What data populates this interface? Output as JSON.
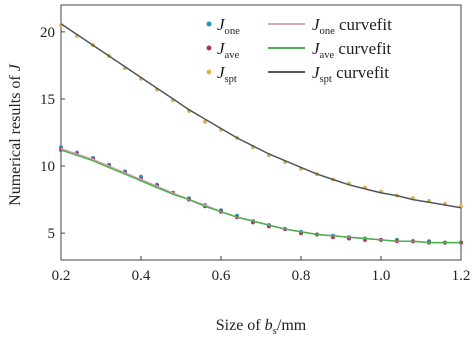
{
  "chart_data": {
    "type": "scatter",
    "title": "",
    "xlabel": {
      "prefix": "Size of ",
      "var": "b",
      "sub": "s",
      "suffix": "/mm"
    },
    "ylabel": {
      "prefix": "Numerical results of ",
      "var": "J"
    },
    "xlim": [
      0.2,
      1.2
    ],
    "ylim": [
      3,
      22
    ],
    "xticks": [
      "0.2",
      "0.4",
      "0.6",
      "0.8",
      "1.0",
      "1.2"
    ],
    "yticks": [
      "5",
      "10",
      "15",
      "20"
    ],
    "grid": false,
    "legend": {
      "placement": "top-right",
      "columns": 2
    },
    "series": [
      {
        "name": "J_one",
        "var": "J",
        "sub": "one",
        "kind": "points",
        "color": "#2f8fb0",
        "x": [
          0.2,
          0.24,
          0.28,
          0.32,
          0.36,
          0.4,
          0.44,
          0.48,
          0.52,
          0.56,
          0.6,
          0.64,
          0.68,
          0.72,
          0.76,
          0.8,
          0.84,
          0.88,
          0.92,
          0.96,
          1.0,
          1.04,
          1.08,
          1.12,
          1.16,
          1.2
        ],
        "y": [
          11.4,
          11.0,
          10.6,
          10.1,
          9.6,
          9.2,
          8.6,
          8.0,
          7.6,
          7.1,
          6.7,
          6.3,
          5.9,
          5.6,
          5.3,
          5.1,
          4.9,
          4.8,
          4.7,
          4.6,
          4.5,
          4.5,
          4.4,
          4.4,
          4.3,
          4.3
        ]
      },
      {
        "name": "J_ave",
        "var": "J",
        "sub": "ave",
        "kind": "points",
        "color": "#b0306a",
        "x": [
          0.2,
          0.24,
          0.28,
          0.32,
          0.36,
          0.4,
          0.44,
          0.48,
          0.52,
          0.56,
          0.6,
          0.64,
          0.68,
          0.72,
          0.76,
          0.8,
          0.84,
          0.88,
          0.92,
          0.96,
          1.0,
          1.04,
          1.08,
          1.12,
          1.16,
          1.2
        ],
        "y": [
          11.2,
          10.9,
          10.5,
          10.0,
          9.5,
          9.0,
          8.5,
          8.0,
          7.5,
          7.0,
          6.6,
          6.2,
          5.8,
          5.5,
          5.3,
          5.0,
          4.9,
          4.7,
          4.6,
          4.5,
          4.5,
          4.4,
          4.4,
          4.3,
          4.3,
          4.3
        ]
      },
      {
        "name": "J_spt",
        "var": "J",
        "sub": "spt",
        "kind": "points",
        "color": "#d9b45a",
        "x": [
          0.2,
          0.24,
          0.28,
          0.32,
          0.36,
          0.4,
          0.44,
          0.48,
          0.52,
          0.56,
          0.6,
          0.64,
          0.68,
          0.72,
          0.76,
          0.8,
          0.84,
          0.88,
          0.92,
          0.96,
          1.0,
          1.04,
          1.08,
          1.12,
          1.16,
          1.2
        ],
        "y": [
          20.5,
          19.7,
          19.0,
          18.2,
          17.3,
          16.5,
          15.7,
          14.9,
          14.1,
          13.3,
          12.7,
          12.1,
          11.4,
          10.8,
          10.3,
          9.8,
          9.4,
          9.0,
          8.7,
          8.4,
          8.1,
          7.8,
          7.6,
          7.4,
          7.2,
          7.0
        ]
      },
      {
        "name": "J_one curvefit",
        "var": "J",
        "sub": "one",
        "suffix": " curvefit",
        "kind": "line",
        "color": "#d7a9b4",
        "x": [
          0.2,
          0.24,
          0.28,
          0.32,
          0.36,
          0.4,
          0.44,
          0.48,
          0.52,
          0.56,
          0.6,
          0.64,
          0.68,
          0.72,
          0.76,
          0.8,
          0.84,
          0.88,
          0.92,
          0.96,
          1.0,
          1.04,
          1.08,
          1.12,
          1.16,
          1.2
        ],
        "y": [
          11.3,
          10.9,
          10.5,
          10.0,
          9.5,
          9.0,
          8.5,
          8.0,
          7.5,
          7.1,
          6.6,
          6.2,
          5.9,
          5.6,
          5.3,
          5.1,
          4.9,
          4.8,
          4.7,
          4.6,
          4.5,
          4.4,
          4.4,
          4.3,
          4.3,
          4.3
        ]
      },
      {
        "name": "J_ave curvefit",
        "var": "J",
        "sub": "ave",
        "suffix": " curvefit",
        "kind": "line",
        "color": "#4caf50",
        "x": [
          0.2,
          0.24,
          0.28,
          0.32,
          0.36,
          0.4,
          0.44,
          0.48,
          0.52,
          0.56,
          0.6,
          0.64,
          0.68,
          0.72,
          0.76,
          0.8,
          0.84,
          0.88,
          0.92,
          0.96,
          1.0,
          1.04,
          1.08,
          1.12,
          1.16,
          1.2
        ],
        "y": [
          11.2,
          10.8,
          10.4,
          9.9,
          9.4,
          8.9,
          8.4,
          7.9,
          7.5,
          7.0,
          6.6,
          6.2,
          5.9,
          5.6,
          5.3,
          5.1,
          4.9,
          4.8,
          4.7,
          4.6,
          4.5,
          4.4,
          4.4,
          4.3,
          4.3,
          4.3
        ]
      },
      {
        "name": "J_spt curvefit",
        "var": "J",
        "sub": "spt",
        "suffix": " curvefit",
        "kind": "line",
        "color": "#555555",
        "x": [
          0.2,
          0.24,
          0.28,
          0.32,
          0.36,
          0.4,
          0.44,
          0.48,
          0.52,
          0.56,
          0.6,
          0.64,
          0.68,
          0.72,
          0.76,
          0.8,
          0.84,
          0.88,
          0.92,
          0.96,
          1.0,
          1.04,
          1.08,
          1.12,
          1.16,
          1.2
        ],
        "y": [
          20.6,
          19.8,
          19.0,
          18.2,
          17.4,
          16.6,
          15.8,
          15.0,
          14.2,
          13.5,
          12.8,
          12.1,
          11.5,
          10.9,
          10.4,
          9.9,
          9.4,
          9.0,
          8.6,
          8.3,
          8.0,
          7.8,
          7.5,
          7.3,
          7.1,
          6.9
        ]
      }
    ]
  }
}
